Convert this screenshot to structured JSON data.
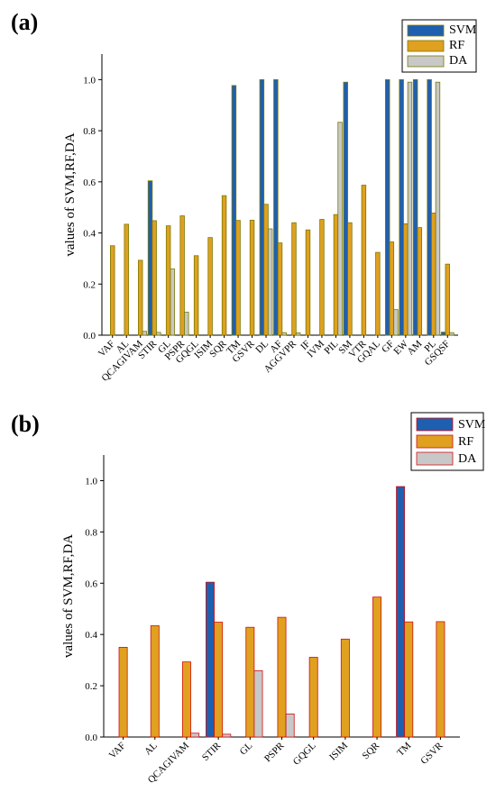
{
  "panels": [
    "(a)",
    "(b)"
  ],
  "colors": {
    "svm": "#1f5fb0",
    "rf": "#e0a020",
    "da": "#c8c8c8",
    "edge_a": "#7a7a00",
    "edge_b": "#d01010"
  },
  "chart_data": [
    {
      "type": "bar",
      "panel": "(a)",
      "ylabel": "values of SVM,RF,DA",
      "ylim": [
        0,
        1.1
      ],
      "yticks": [
        "0.0",
        "0.2",
        "0.4",
        "0.6",
        "0.8",
        "1.0"
      ],
      "legend_position": "top-right",
      "categories": [
        "VAF",
        "AL",
        "QCAGIVAM",
        "STIR",
        "GL",
        "PSPR",
        "GQGL",
        "ISIM",
        "SQR",
        "TM",
        "GSVR",
        "DL",
        "AF",
        "AGGVPR",
        "IF",
        "IVM",
        "PIL",
        "SM",
        "VTR",
        "GQAL",
        "GF",
        "EW",
        "AM",
        "PL",
        "GSQSF"
      ],
      "series": [
        {
          "name": "SVM",
          "values": [
            0,
            0,
            0,
            0.604,
            0,
            0,
            0,
            0,
            0,
            0.977,
            0,
            1.0,
            1.0,
            0,
            0,
            0,
            0,
            0.99,
            0,
            0,
            1.0,
            1.0,
            1.0,
            1.0,
            0.012
          ]
        },
        {
          "name": "RF",
          "values": [
            0.35,
            0.434,
            0.293,
            0.448,
            0.428,
            0.467,
            0.311,
            0.382,
            0.546,
            0.449,
            0.45,
            0.512,
            0.361,
            0.44,
            0.412,
            0.453,
            0.472,
            0.44,
            0.587,
            0.324,
            0.365,
            0.436,
            0.421,
            0.478,
            0.278
          ]
        },
        {
          "name": "DA",
          "values": [
            0,
            0,
            0.015,
            0.011,
            0.259,
            0.09,
            0,
            0,
            0,
            0,
            0,
            0.416,
            0.01,
            0.009,
            0,
            0,
            0.833,
            0,
            0,
            0,
            0.1,
            0.99,
            0,
            0.99,
            0.01
          ]
        }
      ]
    },
    {
      "type": "bar",
      "panel": "(b)",
      "ylabel": "values of SVM,RF,DA",
      "ylim": [
        0,
        1.1
      ],
      "yticks": [
        "0.0",
        "0.2",
        "0.4",
        "0.6",
        "0.8",
        "1.0"
      ],
      "legend_position": "top-right",
      "categories": [
        "VAF",
        "AL",
        "QCAGIVAM",
        "STIR",
        "GL",
        "PSPR",
        "GQGL",
        "ISIM",
        "SQR",
        "TM",
        "GSVR"
      ],
      "series": [
        {
          "name": "SVM",
          "values": [
            0,
            0,
            0,
            0.604,
            0,
            0,
            0,
            0,
            0,
            0.977,
            0
          ]
        },
        {
          "name": "RF",
          "values": [
            0.35,
            0.434,
            0.293,
            0.448,
            0.428,
            0.467,
            0.311,
            0.382,
            0.546,
            0.449,
            0.45
          ]
        },
        {
          "name": "DA",
          "values": [
            0,
            0,
            0.015,
            0.011,
            0.259,
            0.09,
            0,
            0,
            0,
            0,
            0
          ]
        }
      ]
    }
  ]
}
